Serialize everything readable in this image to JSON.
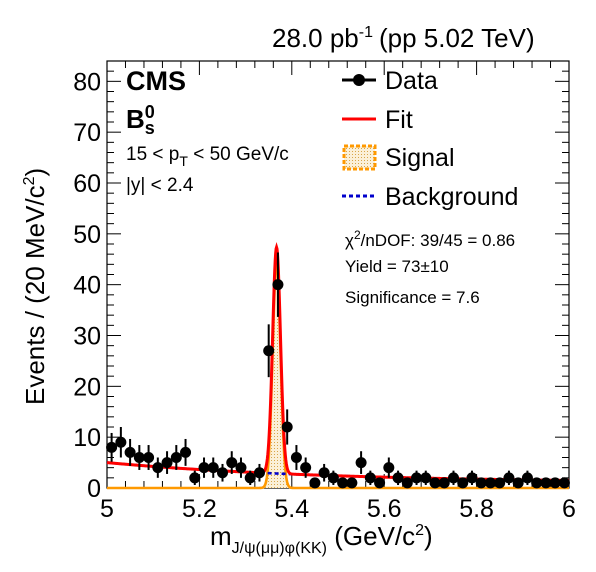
{
  "header": {
    "luminosity": "28.0 pb",
    "luminosity_exp": "-1",
    "energy": "(pp 5.02 TeV)"
  },
  "labels": {
    "experiment": "CMS",
    "particle": "B",
    "particle_sup": "0",
    "particle_sub": "s",
    "pt_cut_left": "15 < p",
    "pt_cut_sub": "T",
    "pt_cut_right": " < 50 GeV/c",
    "y_cut": "|y| < 2.4"
  },
  "fit_info": {
    "chi2_symbol": "χ",
    "chi2_exp": "2",
    "chi2_text": "/nDOF: 39/45 = 0.86",
    "yield": "Yield = 73±10",
    "significance": "Significance = 7.6"
  },
  "legend": {
    "data": "Data",
    "fit": "Fit",
    "signal": "Signal",
    "background": "Background"
  },
  "colors": {
    "data": "#000000",
    "fit": "#ff0000",
    "signal_line": "#ff9900",
    "signal_fill": "#f5deb3",
    "background": "#0000cc"
  },
  "chart_data": {
    "type": "scatter",
    "xlabel_main": "m",
    "xlabel_sub": "J/ψ(μμ)φ(KK)",
    "xlabel_unit": " (GeV/c",
    "xlabel_unit_exp": "2",
    "xlabel_close": ")",
    "ylabel": "Events / (20 MeV/c",
    "ylabel_exp": "2",
    "ylabel_close": ")",
    "xlim": [
      5.0,
      6.0
    ],
    "ylim": [
      0,
      84
    ],
    "x_ticks": [
      5.0,
      5.2,
      5.4,
      5.6,
      5.8,
      6.0
    ],
    "x_tick_labels": [
      "5",
      "5.2",
      "5.4",
      "5.6",
      "5.8",
      "6"
    ],
    "y_ticks": [
      0,
      10,
      20,
      30,
      40,
      50,
      60,
      70,
      80
    ],
    "y_tick_labels": [
      "0",
      "10",
      "20",
      "30",
      "40",
      "50",
      "60",
      "70",
      "80"
    ],
    "bin_width": 0.02,
    "data_x": [
      5.01,
      5.03,
      5.05,
      5.07,
      5.09,
      5.11,
      5.13,
      5.15,
      5.17,
      5.19,
      5.21,
      5.23,
      5.25,
      5.27,
      5.29,
      5.31,
      5.33,
      5.35,
      5.37,
      5.39,
      5.41,
      5.43,
      5.45,
      5.47,
      5.49,
      5.51,
      5.53,
      5.55,
      5.57,
      5.59,
      5.61,
      5.63,
      5.65,
      5.67,
      5.69,
      5.71,
      5.73,
      5.75,
      5.77,
      5.79,
      5.81,
      5.83,
      5.85,
      5.87,
      5.89,
      5.91,
      5.93,
      5.95,
      5.97,
      5.99
    ],
    "data_y": [
      8,
      9,
      7,
      6,
      6,
      4,
      5,
      6,
      7,
      2,
      4,
      4,
      3,
      5,
      4,
      2,
      3,
      27,
      40,
      12,
      6,
      4,
      1,
      3,
      2,
      1,
      1,
      5,
      2,
      1,
      4,
      2,
      1,
      2,
      2,
      1,
      1,
      2,
      1,
      2,
      1,
      1,
      1,
      2,
      1,
      2,
      1,
      1,
      1,
      1
    ],
    "fit": {
      "peak_mass": 5.367,
      "signal_amplitude": 44.5,
      "signal_width": 0.0085,
      "background_value_at_5": 5.0,
      "background_slope": 2.1,
      "background_constant": 1.0
    }
  }
}
